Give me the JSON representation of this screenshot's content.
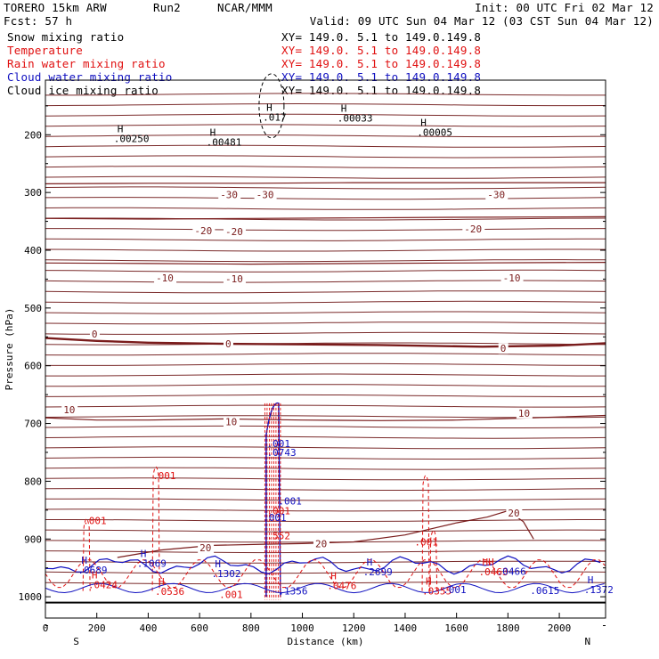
{
  "header": {
    "model_label": "TORERO  15km ARW",
    "run_label": "Run2",
    "org_label": "NCAR/MMM",
    "init_label": "Init: 00 UTC Fri 02 Mar 12",
    "fcst_label": "Fcst:   57 h",
    "valid_label": "Valid: 09 UTC Sun 04 Mar 12 (03 CST Sun 04 Mar 12)"
  },
  "fields": [
    {
      "name": "Snow mixing ratio",
      "color": "#000000",
      "xy": "XY= 149.0.  5.1 to 149.0.149.8"
    },
    {
      "name": "Temperature",
      "color": "#e01010",
      "xy": "XY= 149.0.  5.1 to 149.0.149.8"
    },
    {
      "name": "Rain water mixing ratio",
      "color": "#e01010",
      "xy": "XY= 149.0.  5.1 to 149.0.149.8"
    },
    {
      "name": "Cloud water mixing ratio",
      "color": "#1010c0",
      "xy": "XY= 149.0.  5.1 to 149.0.149.8"
    },
    {
      "name": "Cloud ice mixing ratio",
      "color": "#000000",
      "xy": "XY= 149.0.  5.1 to 149.0.149.8"
    }
  ],
  "chart_data": {
    "type": "cross-section contour",
    "xlabel": "Distance (km)",
    "ylabel": "Pressure (hPa)",
    "xlim": [
      0,
      2180
    ],
    "ylim_hpa": [
      1050,
      100
    ],
    "x_ticks": [
      0,
      200,
      400,
      600,
      800,
      1000,
      1200,
      1400,
      1600,
      1800,
      2000
    ],
    "y_ticks": [
      200,
      300,
      400,
      500,
      600,
      700,
      800,
      900,
      1000
    ],
    "end_labels": {
      "left": "S",
      "right": "N"
    },
    "temperature_isotherms": [
      {
        "label": "-30",
        "points": [
          [
            0,
            285
          ],
          [
            400,
            284
          ],
          [
            800,
            284
          ],
          [
            1200,
            283
          ],
          [
            1600,
            283
          ],
          [
            2180,
            283
          ]
        ]
      },
      {
        "label": "-20",
        "points": [
          [
            0,
            345
          ],
          [
            400,
            346
          ],
          [
            800,
            345
          ],
          [
            1200,
            344
          ],
          [
            1600,
            343
          ],
          [
            2180,
            342
          ]
        ]
      },
      {
        "label": "-10",
        "points": [
          [
            0,
            422
          ],
          [
            400,
            423
          ],
          [
            800,
            424
          ],
          [
            1200,
            423
          ],
          [
            1600,
            422
          ],
          [
            2180,
            421
          ]
        ]
      },
      {
        "label": "0",
        "points": [
          [
            0,
            552
          ],
          [
            200,
            557
          ],
          [
            400,
            560
          ],
          [
            700,
            562
          ],
          [
            1000,
            563
          ],
          [
            1300,
            564
          ],
          [
            1700,
            567
          ],
          [
            2000,
            565
          ],
          [
            2180,
            561
          ]
        ]
      },
      {
        "label": "10",
        "points": [
          [
            0,
            690
          ],
          [
            200,
            694
          ],
          [
            400,
            694
          ],
          [
            700,
            692
          ],
          [
            1000,
            694
          ],
          [
            1300,
            695
          ],
          [
            1600,
            694
          ],
          [
            1900,
            690
          ],
          [
            2180,
            686
          ]
        ]
      },
      {
        "label": "20",
        "points": [
          [
            280,
            932
          ],
          [
            450,
            919
          ],
          [
            650,
            911
          ],
          [
            850,
            909
          ],
          [
            1000,
            908
          ],
          [
            1200,
            905
          ],
          [
            1400,
            893
          ],
          [
            1600,
            872
          ],
          [
            1720,
            862
          ],
          [
            1800,
            851
          ],
          [
            1860,
            870
          ],
          [
            1900,
            900
          ]
        ]
      }
    ],
    "temperature_labels": [
      {
        "text": "-30",
        "x": 680,
        "p": 304
      },
      {
        "text": "-30",
        "x": 820,
        "p": 304
      },
      {
        "text": "-30",
        "x": 1720,
        "p": 304
      },
      {
        "text": "-20",
        "x": 580,
        "p": 366
      },
      {
        "text": "-20",
        "x": 700,
        "p": 368
      },
      {
        "text": "-20",
        "x": 1630,
        "p": 363
      },
      {
        "text": "-10",
        "x": 430,
        "p": 448
      },
      {
        "text": "-10",
        "x": 700,
        "p": 449
      },
      {
        "text": "-10",
        "x": 1780,
        "p": 448
      },
      {
        "text": "0",
        "x": 180,
        "p": 545
      },
      {
        "text": "0",
        "x": 700,
        "p": 562
      },
      {
        "text": "0",
        "x": 1770,
        "p": 570
      },
      {
        "text": "10",
        "x": 70,
        "p": 676
      },
      {
        "text": "10",
        "x": 700,
        "p": 697
      },
      {
        "text": "10",
        "x": 1840,
        "p": 682
      },
      {
        "text": "20",
        "x": 600,
        "p": 915
      },
      {
        "text": "20",
        "x": 1050,
        "p": 908
      },
      {
        "text": "20",
        "x": 1800,
        "p": 855
      }
    ],
    "extrema_labels": [
      {
        "mark": "H",
        "value": ".00250",
        "x": 280,
        "p": 213,
        "color": "#000000"
      },
      {
        "mark": "H",
        "value": ".00481",
        "x": 640,
        "p": 219,
        "color": "#000000"
      },
      {
        "mark": "H",
        "value": ".017",
        "x": 860,
        "p": 176,
        "color": "#000000"
      },
      {
        "mark": "H",
        "value": ".00033",
        "x": 1150,
        "p": 177,
        "color": "#000000"
      },
      {
        "mark": "H",
        "value": ".00005",
        "x": 1460,
        "p": 202,
        "color": "#000000"
      },
      {
        "mark": "",
        "value": ".001",
        "x": 430,
        "p": 796,
        "color": "#e01010"
      },
      {
        "mark": "",
        "value": ".001",
        "x": 160,
        "p": 874,
        "color": "#e01010"
      },
      {
        "mark": "",
        "value": ".001",
        "x": 1450,
        "p": 911,
        "color": "#e01010"
      },
      {
        "mark": "",
        "value": ".001",
        "x": 875,
        "p": 741,
        "color": "#1010c0"
      },
      {
        "mark": "",
        "value": ".0743",
        "x": 875,
        "p": 756,
        "color": "#1010c0"
      },
      {
        "mark": "",
        "value": ".001",
        "x": 920,
        "p": 840,
        "color": "#1010c0"
      },
      {
        "mark": "",
        "value": ".001",
        "x": 860,
        "p": 869,
        "color": "#1010c0"
      },
      {
        "mark": "",
        "value": ".001",
        "x": 875,
        "p": 857,
        "color": "#e01010"
      },
      {
        "mark": "",
        "value": ".552",
        "x": 875,
        "p": 900,
        "color": "#e01010"
      },
      {
        "mark": "H",
        "value": ".0689",
        "x": 140,
        "p": 960,
        "color": "#1010c0"
      },
      {
        "mark": "H",
        "value": ".1069",
        "x": 370,
        "p": 948,
        "color": "#1010c0"
      },
      {
        "mark": "H",
        "value": ".0424",
        "x": 180,
        "p": 985,
        "color": "#e01010"
      },
      {
        "mark": "H",
        "value": ".0536",
        "x": 440,
        "p": 997,
        "color": "#e01010"
      },
      {
        "mark": "H",
        "value": ".1302",
        "x": 660,
        "p": 966,
        "color": "#1010c0"
      },
      {
        "mark": "",
        "value": ".001",
        "x": 690,
        "p": 1002,
        "color": "#e01010"
      },
      {
        "mark": "",
        "value": ".1356",
        "x": 920,
        "p": 996,
        "color": "#1010c0"
      },
      {
        "mark": "H",
        "value": ".0476",
        "x": 1110,
        "p": 987,
        "color": "#e01010"
      },
      {
        "mark": "H",
        "value": ".2699",
        "x": 1250,
        "p": 963,
        "color": "#1010c0"
      },
      {
        "mark": "H",
        "value": ".0355",
        "x": 1480,
        "p": 996,
        "color": "#e01010"
      },
      {
        "mark": "",
        "value": ".001",
        "x": 1560,
        "p": 994,
        "color": "#1010c0"
      },
      {
        "mark": "HH",
        "value": ".0463",
        "x": 1700,
        "p": 963,
        "color": "#e01010"
      },
      {
        "mark": "",
        "value": ".0466",
        "x": 1770,
        "p": 962,
        "color": "#1010c0"
      },
      {
        "mark": "",
        "value": ".0615",
        "x": 1900,
        "p": 995,
        "color": "#1010c0"
      },
      {
        "mark": "H",
        "value": ".1372",
        "x": 2110,
        "p": 994,
        "color": "#1010c0"
      }
    ],
    "grid": false,
    "legend_placement": "top-left"
  }
}
